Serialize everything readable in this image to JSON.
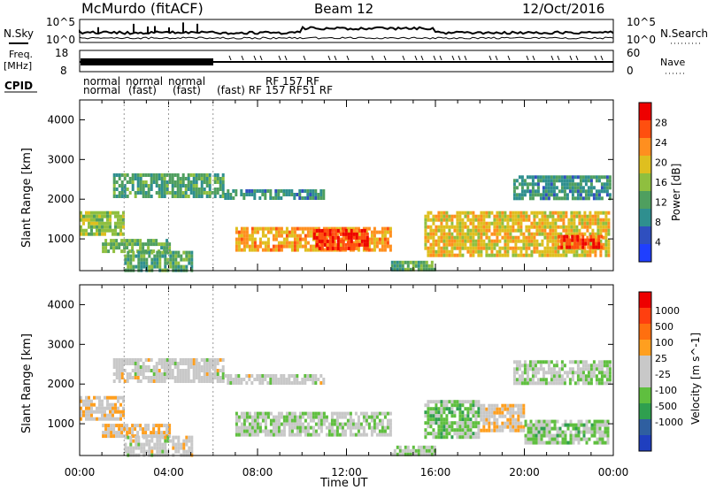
{
  "header": {
    "station": "McMurdo (fitACF)",
    "beam": "Beam 12",
    "date": "12/Oct/2016"
  },
  "summary_panels": {
    "nsky_label": "N.Sky",
    "nsky_ticks": [
      "10^5",
      "10^0"
    ],
    "nsearch_label": "N.Search",
    "freq_label_line1": "Freq.",
    "freq_label_line2": "[MHz]",
    "freq_ticks": [
      "18",
      "8"
    ],
    "nave_ticks": [
      "60",
      "0"
    ],
    "nave_label": "Nave",
    "cpid_label": "CPID",
    "cpid_row1": [
      "normal",
      "normal",
      "normal",
      "RF 157 RF"
    ],
    "cpid_row2": [
      "normal",
      "(fast)",
      "(fast)",
      "(fast) RF 157 RF51 RF"
    ]
  },
  "colors": {
    "power_scale": [
      "#1f3fff",
      "#2f4fbf",
      "#2f8f8f",
      "#4f9f5f",
      "#8fbf3f",
      "#dfbf1f",
      "#ff8f1f",
      "#ff4f0f",
      "#ee0000"
    ],
    "velocity_scale": [
      "#1f3fbf",
      "#2f5fa0",
      "#2f9f4f",
      "#5fbf3f",
      "#c8c8c8",
      "#c8c8c8",
      "#ff9f1f",
      "#ff6f0f",
      "#ff3f0f",
      "#ee0000"
    ]
  },
  "chart_data": [
    {
      "type": "heatmap",
      "panel": "power",
      "title": "",
      "xlabel": "Time UT",
      "ylabel": "Slant Range [km]",
      "xlim": [
        0,
        24
      ],
      "x_ticks": [
        "00:00",
        "04:00",
        "08:00",
        "12:00",
        "16:00",
        "20:00",
        "00:00"
      ],
      "ylim": [
        200,
        4500
      ],
      "y_ticks": [
        1000,
        2000,
        3000,
        4000
      ],
      "colorbar_label": "Power [dB]",
      "colorbar_ticks": [
        4,
        8,
        12,
        16,
        20,
        24,
        28
      ],
      "clim": [
        0,
        32
      ],
      "echo_regions": [
        {
          "t0": 0.0,
          "t1": 2.0,
          "r0": 1150,
          "r1": 1700,
          "value": 16
        },
        {
          "t0": 1.0,
          "t1": 4.0,
          "r0": 700,
          "r1": 1000,
          "value": 14
        },
        {
          "t0": 2.0,
          "t1": 5.0,
          "r0": 250,
          "r1": 700,
          "value": 12
        },
        {
          "t0": 1.5,
          "t1": 6.5,
          "r0": 2050,
          "r1": 2650,
          "value": 12
        },
        {
          "t0": 6.5,
          "t1": 11.0,
          "r0": 2000,
          "r1": 2250,
          "value": 10
        },
        {
          "t0": 7.0,
          "t1": 14.0,
          "r0": 700,
          "r1": 1300,
          "value": 22
        },
        {
          "t0": 10.5,
          "t1": 13.0,
          "r0": 800,
          "r1": 1250,
          "value": 28
        },
        {
          "t0": 14.0,
          "t1": 16.0,
          "r0": 250,
          "r1": 450,
          "value": 12
        },
        {
          "t0": 15.5,
          "t1": 23.8,
          "r0": 550,
          "r1": 1700,
          "value": 20
        },
        {
          "t0": 21.5,
          "t1": 23.5,
          "r0": 750,
          "r1": 1100,
          "value": 28
        },
        {
          "t0": 19.5,
          "t1": 23.8,
          "r0": 2000,
          "r1": 2600,
          "value": 10
        }
      ]
    },
    {
      "type": "heatmap",
      "panel": "velocity",
      "title": "",
      "xlabel": "Time UT",
      "ylabel": "Slant Range [km]",
      "xlim": [
        0,
        24
      ],
      "x_ticks": [
        "00:00",
        "04:00",
        "08:00",
        "12:00",
        "16:00",
        "20:00",
        "00:00"
      ],
      "ylim": [
        200,
        4500
      ],
      "y_ticks": [
        1000,
        2000,
        3000,
        4000
      ],
      "colorbar_label": "Velocity [m s^-1]",
      "colorbar_ticks": [
        1000,
        500,
        100,
        25,
        -25,
        -100,
        -500,
        -1000
      ],
      "clim": [
        -1200,
        1200
      ],
      "echo_regions": [
        {
          "t0": 0.0,
          "t1": 2.0,
          "r0": 1150,
          "r1": 1700,
          "value": 150
        },
        {
          "t0": 1.0,
          "t1": 4.0,
          "r0": 700,
          "r1": 1000,
          "value": 200
        },
        {
          "t0": 2.0,
          "t1": 5.0,
          "r0": 250,
          "r1": 700,
          "value": 0
        },
        {
          "t0": 1.5,
          "t1": 6.5,
          "r0": 2050,
          "r1": 2650,
          "value": 0
        },
        {
          "t0": 6.5,
          "t1": 11.0,
          "r0": 2000,
          "r1": 2250,
          "value": 0
        },
        {
          "t0": 7.0,
          "t1": 14.0,
          "r0": 700,
          "r1": 1300,
          "value": -150
        },
        {
          "t0": 14.0,
          "t1": 16.0,
          "r0": 250,
          "r1": 450,
          "value": -150
        },
        {
          "t0": 15.5,
          "t1": 18.0,
          "r0": 700,
          "r1": 1600,
          "value": -300
        },
        {
          "t0": 18.0,
          "t1": 20.0,
          "r0": 800,
          "r1": 1500,
          "value": 150
        },
        {
          "t0": 20.0,
          "t1": 23.8,
          "r0": 550,
          "r1": 1100,
          "value": -250
        },
        {
          "t0": 19.5,
          "t1": 23.8,
          "r0": 2000,
          "r1": 2600,
          "value": -150
        }
      ]
    }
  ]
}
